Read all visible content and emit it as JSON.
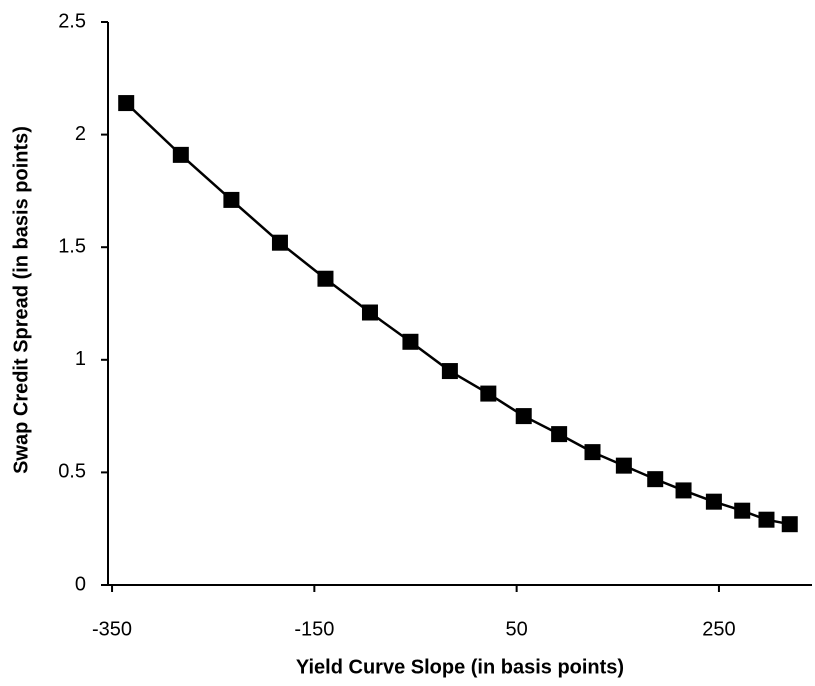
{
  "chart_data": {
    "type": "line",
    "x_label": "Yield Curve Slope (in basis points)",
    "y_label": "Swap Credit Spread (in basis points)",
    "x": [
      -336,
      -282,
      -232,
      -184,
      -139,
      -95,
      -55,
      -16,
      22,
      57,
      92,
      125,
      156,
      187,
      215,
      245,
      273,
      297,
      320
    ],
    "values": [
      2.14,
      1.91,
      1.71,
      1.52,
      1.36,
      1.21,
      1.08,
      0.95,
      0.85,
      0.75,
      0.67,
      0.59,
      0.53,
      0.47,
      0.42,
      0.37,
      0.33,
      0.29,
      0.27
    ],
    "color": "#000000",
    "marker": "square",
    "xlim": [
      -354,
      342
    ],
    "xticks": [
      -350,
      -150,
      50,
      250
    ],
    "ylim": [
      0,
      2.5
    ],
    "yticks": [
      0,
      0.5,
      1,
      1.5,
      2,
      2.5
    ]
  }
}
